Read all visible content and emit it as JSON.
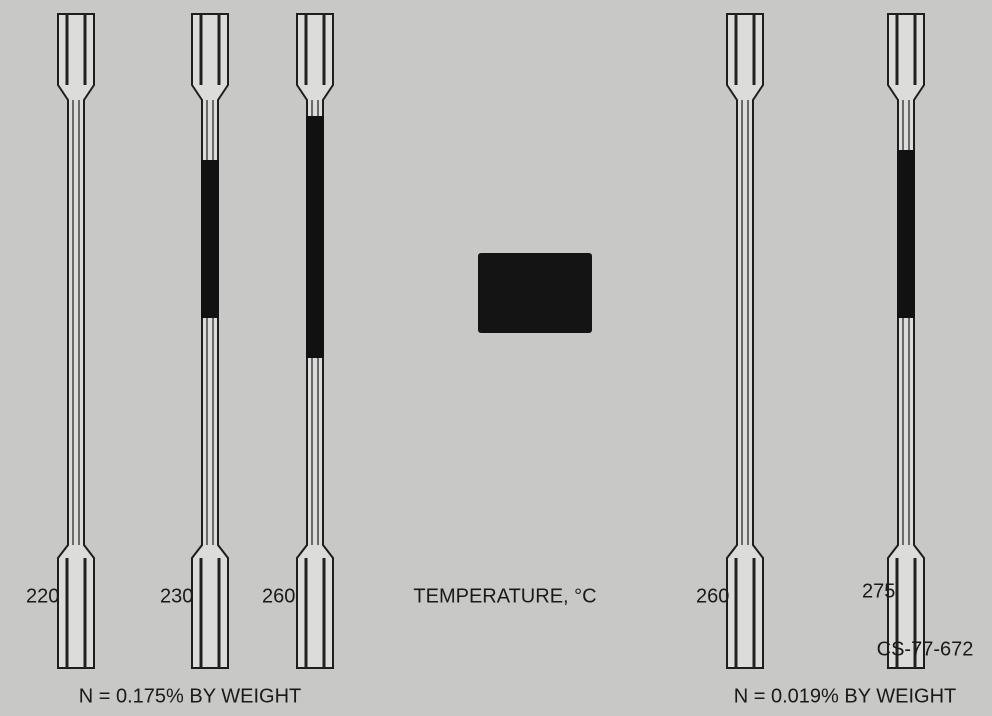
{
  "specimens": [
    {
      "label": "220"
    },
    {
      "label": "230"
    },
    {
      "label": "260"
    },
    {
      "label": "260"
    },
    {
      "label": "275"
    }
  ],
  "center_label": "TEMPERATURE, °C",
  "group_captions": [
    "N = 0.175% BY WEIGHT",
    "N = 0.019% BY WEIGHT"
  ],
  "figure_code": "CS-77-672"
}
